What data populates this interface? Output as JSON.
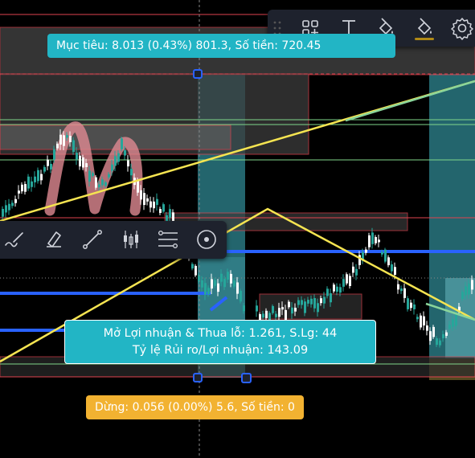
{
  "target_label": "Mục tiêu: 8.013 (0.43%) 801.3, Số tiền: 720.45",
  "pnl": {
    "line1": "Mở Lợi nhuận & Thua lỗ: 1.261, S.Lg: 44",
    "line2": "Tỷ lệ Rủi ro/Lợi nhuận: 143.09"
  },
  "stop_label": "Dừng: 0.056 (0.00%) 5.6, Số tiền: 0",
  "floating_toolbar": [
    "drag-handle-icon",
    "objects-tree-icon",
    "text-icon",
    "fill-color-icon",
    "background-color-icon",
    "settings-icon"
  ],
  "side_toolbar": [
    "brush-icon",
    "highlighter-icon",
    "trend-line-icon",
    "candles-icon",
    "fib-retracement-icon",
    "target-circle-icon"
  ],
  "colors": {
    "background": "#000000",
    "teal_zone": "#3fb8c6",
    "target_label": "#22b5c5",
    "stop_label": "#f2b231",
    "trend_yellow": "#f5e451",
    "blue_level": "#2962ff",
    "red_box": "#e0434f",
    "green_line": "#80d68a",
    "candle_up": "#ffffff",
    "candle_down": "#26a69a",
    "toolbar_bg": "#1e222d"
  }
}
